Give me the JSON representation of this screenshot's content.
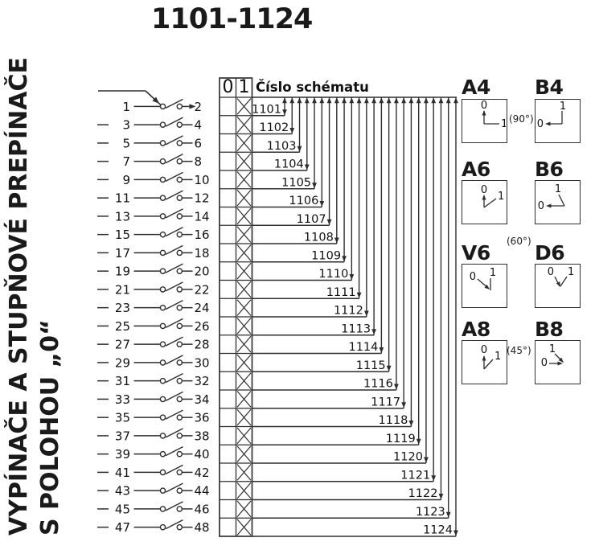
{
  "title": "1101-1124",
  "side_label": {
    "line1": "VYPÍNAČE A STUPŇOVÉ PREPÍNAČE",
    "line2": "S POLOHOU „0“"
  },
  "schematic": {
    "schema_header": "Číslo schématu",
    "state_columns": [
      "0",
      "1"
    ],
    "rows": [
      {
        "left": "1",
        "right": "2",
        "schema": "1101",
        "x": "1"
      },
      {
        "left": "3",
        "right": "4",
        "schema": "1102",
        "x": "1"
      },
      {
        "left": "5",
        "right": "6",
        "schema": "1103",
        "x": "1"
      },
      {
        "left": "7",
        "right": "8",
        "schema": "1104",
        "x": "1"
      },
      {
        "left": "9",
        "right": "10",
        "schema": "1105",
        "x": "1"
      },
      {
        "left": "11",
        "right": "12",
        "schema": "1106",
        "x": "1"
      },
      {
        "left": "13",
        "right": "14",
        "schema": "1107",
        "x": "1"
      },
      {
        "left": "15",
        "right": "16",
        "schema": "1108",
        "x": "1"
      },
      {
        "left": "17",
        "right": "18",
        "schema": "1109",
        "x": "1"
      },
      {
        "left": "19",
        "right": "20",
        "schema": "1110",
        "x": "1"
      },
      {
        "left": "21",
        "right": "22",
        "schema": "1111",
        "x": "1"
      },
      {
        "left": "23",
        "right": "24",
        "schema": "1112",
        "x": "1"
      },
      {
        "left": "25",
        "right": "26",
        "schema": "1113",
        "x": "1"
      },
      {
        "left": "27",
        "right": "28",
        "schema": "1114",
        "x": "1"
      },
      {
        "left": "29",
        "right": "30",
        "schema": "1115",
        "x": "1"
      },
      {
        "left": "31",
        "right": "32",
        "schema": "1116",
        "x": "1"
      },
      {
        "left": "33",
        "right": "34",
        "schema": "1117",
        "x": "1"
      },
      {
        "left": "35",
        "right": "36",
        "schema": "1118",
        "x": "1"
      },
      {
        "left": "37",
        "right": "38",
        "schema": "1119",
        "x": "1"
      },
      {
        "left": "39",
        "right": "40",
        "schema": "1120",
        "x": "1"
      },
      {
        "left": "41",
        "right": "42",
        "schema": "1121",
        "x": "1"
      },
      {
        "left": "43",
        "right": "44",
        "schema": "1122",
        "x": "1"
      },
      {
        "left": "45",
        "right": "46",
        "schema": "1123",
        "x": "1"
      },
      {
        "left": "47",
        "right": "48",
        "schema": "1124",
        "x": "1"
      }
    ]
  },
  "position_boxes": [
    {
      "label": "A4",
      "glyph": "a4",
      "zero": "0",
      "one": "1"
    },
    {
      "label": "B4",
      "glyph": "b4",
      "zero": "0",
      "one": "1"
    },
    {
      "label": "A6",
      "glyph": "a6",
      "zero": "0",
      "one": "1"
    },
    {
      "label": "B6",
      "glyph": "b6",
      "zero": "0",
      "one": "1"
    },
    {
      "label": "V6",
      "glyph": "v6",
      "zero": "0",
      "one": "1"
    },
    {
      "label": "D6",
      "glyph": "d6",
      "zero": "0",
      "one": "1"
    },
    {
      "label": "A8",
      "glyph": "a8",
      "zero": "0",
      "one": "1"
    },
    {
      "label": "B8",
      "glyph": "b8",
      "zero": "0",
      "one": "1"
    }
  ],
  "angle_annotations": [
    "(90°)",
    "(60°)",
    "(45°)"
  ],
  "colors": {
    "ink": "#111111",
    "line": "#2e2e2e",
    "grid": "#3d3d3d",
    "bg": "#ffffff"
  }
}
